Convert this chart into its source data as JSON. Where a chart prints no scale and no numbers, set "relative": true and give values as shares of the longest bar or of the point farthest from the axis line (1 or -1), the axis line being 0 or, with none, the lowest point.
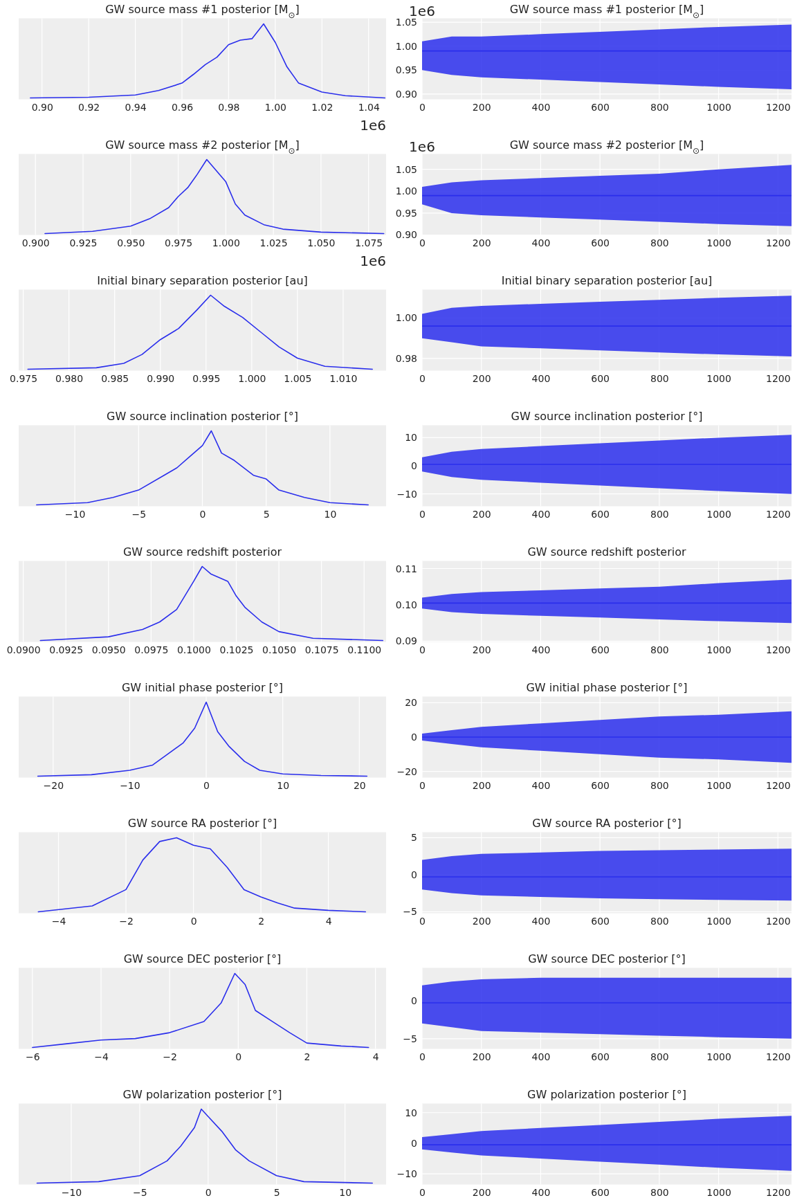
{
  "chart_data": [
    {
      "type": "line",
      "title": "GW source mass #1 posterior [M$_{⊙}$]",
      "relative": true,
      "tick_labels": "x",
      "grid": "x",
      "annotations": [
        "1e6"
      ],
      "xlim": [
        0.89,
        1.0475
      ],
      "xticks": [
        {
          "value": 0.9,
          "label": "0.90"
        },
        {
          "value": 0.92,
          "label": "0.92"
        },
        {
          "value": 0.94,
          "label": "0.94"
        },
        {
          "value": 0.96,
          "label": "0.96"
        },
        {
          "value": 0.98,
          "label": "0.98"
        },
        {
          "value": 1.0,
          "label": "1.00"
        },
        {
          "value": 1.02,
          "label": "1.02"
        },
        {
          "value": 1.04,
          "label": "1.04"
        }
      ],
      "series": [
        {
          "color": "#2a2eec",
          "x": [
            0.895,
            0.92,
            0.94,
            0.95,
            0.96,
            0.965,
            0.97,
            0.975,
            0.98,
            0.985,
            0.99,
            0.995,
            1.0,
            1.005,
            1.01,
            1.02,
            1.03,
            1.047
          ],
          "values": [
            0,
            0.01,
            0.04,
            0.1,
            0.2,
            0.32,
            0.45,
            0.55,
            0.72,
            0.78,
            0.8,
            1.0,
            0.75,
            0.42,
            0.2,
            0.08,
            0.03,
            0
          ]
        }
      ]
    },
    {
      "type": "line",
      "title": "GW source mass #1 posterior [M$_{⊙}$]",
      "grid": true,
      "annotations": [
        "1e6"
      ],
      "xlim": [
        0,
        1246
      ],
      "xticks": [
        0,
        200,
        400,
        600,
        800,
        1000,
        1200
      ],
      "ylim": [
        0.889,
        1.058
      ],
      "yticks": [
        {
          "value": 0.9,
          "label": "0.90"
        },
        {
          "value": 0.95,
          "label": "0.95"
        },
        {
          "value": 1.0,
          "label": "1.00"
        },
        {
          "value": 1.05,
          "label": "1.05"
        }
      ],
      "series": [
        {
          "color": "#2a2eec",
          "x": [
            0,
            100,
            200,
            400,
            600,
            800,
            1000,
            1246
          ],
          "values": [
            0.99,
            0.99,
            0.99,
            0.99,
            0.99,
            0.99,
            0.99,
            0.99
          ],
          "lower": [
            0.95,
            0.94,
            0.935,
            0.93,
            0.925,
            0.92,
            0.915,
            0.91
          ],
          "upper": [
            1.01,
            1.02,
            1.02,
            1.025,
            1.03,
            1.035,
            1.04,
            1.045
          ]
        }
      ]
    },
    {
      "type": "line",
      "title": "GW source mass #2 posterior [M$_{⊙}$]",
      "relative": true,
      "tick_labels": "x",
      "grid": "x",
      "annotations": [
        "1e6"
      ],
      "xlim": [
        0.8912,
        1.0842
      ],
      "xticks": [
        {
          "value": 0.9,
          "label": "0.900"
        },
        {
          "value": 0.925,
          "label": "0.925"
        },
        {
          "value": 0.95,
          "label": "0.950"
        },
        {
          "value": 0.975,
          "label": "0.975"
        },
        {
          "value": 1.0,
          "label": "1.000"
        },
        {
          "value": 1.025,
          "label": "1.025"
        },
        {
          "value": 1.05,
          "label": "1.050"
        },
        {
          "value": 1.075,
          "label": "1.075"
        }
      ],
      "series": [
        {
          "color": "#2a2eec",
          "x": [
            0.905,
            0.93,
            0.95,
            0.96,
            0.97,
            0.975,
            0.98,
            0.985,
            0.99,
            0.995,
            1.0,
            1.005,
            1.01,
            1.02,
            1.03,
            1.05,
            1.083
          ],
          "values": [
            0,
            0.03,
            0.1,
            0.2,
            0.35,
            0.5,
            0.62,
            0.8,
            1.0,
            0.85,
            0.7,
            0.4,
            0.25,
            0.12,
            0.06,
            0.02,
            0
          ]
        }
      ]
    },
    {
      "type": "line",
      "title": "GW source mass #2 posterior [M$_{⊙}$]",
      "grid": true,
      "annotations": [
        "1e6"
      ],
      "xlim": [
        0,
        1246
      ],
      "xticks": [
        0,
        200,
        400,
        600,
        800,
        1000,
        1200
      ],
      "ylim": [
        0.9,
        1.085
      ],
      "yticks": [
        {
          "value": 0.9,
          "label": "0.90"
        },
        {
          "value": 0.95,
          "label": "0.95"
        },
        {
          "value": 1.0,
          "label": "1.00"
        },
        {
          "value": 1.05,
          "label": "1.05"
        }
      ],
      "series": [
        {
          "color": "#2a2eec",
          "x": [
            0,
            100,
            200,
            400,
            600,
            800,
            1000,
            1246
          ],
          "values": [
            0.99,
            0.99,
            0.99,
            0.99,
            0.99,
            0.99,
            0.99,
            0.99
          ],
          "lower": [
            0.97,
            0.95,
            0.945,
            0.94,
            0.935,
            0.93,
            0.925,
            0.92
          ],
          "upper": [
            1.01,
            1.02,
            1.025,
            1.03,
            1.035,
            1.04,
            1.05,
            1.06
          ]
        }
      ]
    },
    {
      "type": "line",
      "title": "Initial binary separation posterior [au]",
      "relative": true,
      "tick_labels": "x",
      "grid": "x",
      "xlim": [
        0.9745,
        1.0147
      ],
      "xticks": [
        {
          "value": 0.975,
          "label": "0.975"
        },
        {
          "value": 0.98,
          "label": "0.980"
        },
        {
          "value": 0.985,
          "label": "0.985"
        },
        {
          "value": 0.99,
          "label": "0.990"
        },
        {
          "value": 0.995,
          "label": "0.995"
        },
        {
          "value": 1.0,
          "label": "1.000"
        },
        {
          "value": 1.005,
          "label": "1.005"
        },
        {
          "value": 1.01,
          "label": "1.010"
        }
      ],
      "series": [
        {
          "color": "#2a2eec",
          "x": [
            0.9755,
            0.983,
            0.986,
            0.988,
            0.99,
            0.992,
            0.994,
            0.9955,
            0.997,
            0.999,
            1.001,
            1.003,
            1.005,
            1.008,
            1.0132
          ],
          "values": [
            0,
            0.02,
            0.08,
            0.2,
            0.4,
            0.55,
            0.8,
            1.0,
            0.85,
            0.7,
            0.5,
            0.3,
            0.15,
            0.04,
            0
          ]
        }
      ]
    },
    {
      "type": "line",
      "title": "Initial binary separation posterior [au]",
      "grid": true,
      "xlim": [
        0,
        1246
      ],
      "xticks": [
        0,
        200,
        400,
        600,
        800,
        1000,
        1200
      ],
      "ylim": [
        0.974,
        1.014
      ],
      "yticks": [
        {
          "value": 0.98,
          "label": "0.98"
        },
        {
          "value": 1.0,
          "label": "1.00"
        }
      ],
      "series": [
        {
          "color": "#2a2eec",
          "x": [
            0,
            100,
            200,
            400,
            600,
            800,
            1000,
            1246
          ],
          "values": [
            0.996,
            0.996,
            0.996,
            0.996,
            0.996,
            0.996,
            0.996,
            0.996
          ],
          "lower": [
            0.99,
            0.988,
            0.986,
            0.985,
            0.984,
            0.983,
            0.982,
            0.981
          ],
          "upper": [
            1.002,
            1.005,
            1.006,
            1.007,
            1.008,
            1.009,
            1.01,
            1.011
          ]
        }
      ]
    },
    {
      "type": "line",
      "title": "GW source inclination posterior [°]",
      "relative": true,
      "tick_labels": "x",
      "grid": "x",
      "xlim": [
        -14.4,
        14.4
      ],
      "xticks": [
        {
          "value": -10,
          "label": "−10"
        },
        {
          "value": -5,
          "label": "−5"
        },
        0,
        5,
        10
      ],
      "series": [
        {
          "color": "#2a2eec",
          "x": [
            -13,
            -9,
            -7,
            -5,
            -3,
            -2,
            -1,
            0,
            0.7,
            1.5,
            2.5,
            4,
            5,
            6,
            8,
            10,
            13
          ],
          "values": [
            0,
            0.03,
            0.1,
            0.2,
            0.4,
            0.5,
            0.65,
            0.8,
            1.0,
            0.7,
            0.6,
            0.4,
            0.35,
            0.2,
            0.1,
            0.03,
            0
          ]
        }
      ]
    },
    {
      "type": "line",
      "title": "GW source inclination posterior [°]",
      "grid": true,
      "xlim": [
        0,
        1246
      ],
      "xticks": [
        0,
        200,
        400,
        600,
        800,
        1000,
        1200
      ],
      "ylim": [
        -14.4,
        14.4
      ],
      "yticks": [
        {
          "value": -10,
          "label": "−10"
        },
        0,
        10
      ],
      "series": [
        {
          "color": "#2a2eec",
          "x": [
            0,
            100,
            200,
            400,
            600,
            800,
            1000,
            1246
          ],
          "values": [
            0.5,
            0.5,
            0.5,
            0.5,
            0.5,
            0.5,
            0.5,
            0.5
          ],
          "lower": [
            -2,
            -4,
            -5,
            -6,
            -7,
            -8,
            -9,
            -10
          ],
          "upper": [
            3,
            5,
            6,
            7,
            8,
            9,
            10,
            11
          ]
        }
      ]
    },
    {
      "type": "line",
      "title": "GW source redshift posterior",
      "relative": true,
      "tick_labels": "x",
      "grid": "x",
      "xlim": [
        0.08973,
        0.11129
      ],
      "xticks": [
        {
          "value": 0.09,
          "label": "0.0900"
        },
        {
          "value": 0.0925,
          "label": "0.0925"
        },
        {
          "value": 0.095,
          "label": "0.0950"
        },
        {
          "value": 0.0975,
          "label": "0.0975"
        },
        {
          "value": 0.1,
          "label": "0.1000"
        },
        {
          "value": 0.1025,
          "label": "0.1025"
        },
        {
          "value": 0.105,
          "label": "0.1050"
        },
        {
          "value": 0.1075,
          "label": "0.1075"
        },
        {
          "value": 0.11,
          "label": "0.1100"
        }
      ],
      "series": [
        {
          "color": "#2a2eec",
          "x": [
            0.091,
            0.095,
            0.097,
            0.098,
            0.099,
            0.1,
            0.1005,
            0.101,
            0.102,
            0.1025,
            0.103,
            0.104,
            0.105,
            0.107,
            0.1111
          ],
          "values": [
            0,
            0.05,
            0.15,
            0.25,
            0.42,
            0.8,
            1.0,
            0.9,
            0.8,
            0.6,
            0.45,
            0.25,
            0.12,
            0.03,
            0
          ]
        }
      ]
    },
    {
      "type": "line",
      "title": "GW source redshift posterior",
      "grid": true,
      "xlim": [
        0,
        1246
      ],
      "xticks": [
        0,
        200,
        400,
        600,
        800,
        1000,
        1200
      ],
      "ylim": [
        0.0898,
        0.1121
      ],
      "yticks": [
        {
          "value": 0.09,
          "label": "0.09"
        },
        {
          "value": 0.1,
          "label": "0.10"
        },
        0.11
      ],
      "series": [
        {
          "color": "#2a2eec",
          "x": [
            0,
            100,
            200,
            400,
            600,
            800,
            1000,
            1246
          ],
          "values": [
            0.1005,
            0.1005,
            0.1005,
            0.1005,
            0.1005,
            0.1005,
            0.1005,
            0.1005
          ],
          "lower": [
            0.099,
            0.098,
            0.0975,
            0.097,
            0.0965,
            0.096,
            0.0955,
            0.095
          ],
          "upper": [
            0.102,
            0.103,
            0.1035,
            0.104,
            0.1045,
            0.105,
            0.106,
            0.107
          ]
        }
      ]
    },
    {
      "type": "line",
      "title": "GW initial phase posterior [°]",
      "relative": true,
      "tick_labels": "x",
      "grid": "x",
      "xlim": [
        -24.5,
        23.5
      ],
      "xticks": [
        {
          "value": -20,
          "label": "−20"
        },
        {
          "value": -10,
          "label": "−10"
        },
        0,
        10,
        20
      ],
      "series": [
        {
          "color": "#2a2eec",
          "x": [
            -22,
            -15,
            -10,
            -7,
            -5,
            -3,
            -1.5,
            0,
            1.5,
            3,
            5,
            7,
            10,
            15,
            21
          ],
          "values": [
            0,
            0.02,
            0.08,
            0.15,
            0.3,
            0.45,
            0.65,
            1.0,
            0.6,
            0.4,
            0.2,
            0.08,
            0.03,
            0.01,
            0
          ]
        }
      ]
    },
    {
      "type": "line",
      "title": "GW initial phase posterior [°]",
      "grid": true,
      "xlim": [
        0,
        1246
      ],
      "xticks": [
        0,
        200,
        400,
        600,
        800,
        1000,
        1200
      ],
      "ylim": [
        -23.6,
        23.6
      ],
      "yticks": [
        {
          "value": -20,
          "label": "−20"
        },
        0,
        20
      ],
      "series": [
        {
          "color": "#2a2eec",
          "x": [
            0,
            100,
            200,
            400,
            600,
            800,
            1000,
            1246
          ],
          "values": [
            0,
            0,
            0,
            0,
            0,
            0,
            0,
            0
          ],
          "lower": [
            -2,
            -4,
            -6,
            -8,
            -10,
            -12,
            -13,
            -15
          ],
          "upper": [
            2,
            4,
            6,
            8,
            10,
            12,
            13,
            15
          ]
        }
      ]
    },
    {
      "type": "line",
      "title": "GW source RA posterior [°]",
      "relative": true,
      "tick_labels": "x",
      "grid": "x",
      "xlim": [
        -5.18,
        5.71
      ],
      "xticks": [
        {
          "value": -4,
          "label": "−4"
        },
        {
          "value": -2,
          "label": "−2"
        },
        0,
        2,
        4
      ],
      "series": [
        {
          "color": "#2a2eec",
          "x": [
            -4.6,
            -3,
            -2,
            -1.5,
            -1,
            -0.5,
            0,
            0.5,
            1,
            1.5,
            2,
            2.5,
            3,
            4,
            5.1
          ],
          "values": [
            0,
            0.08,
            0.3,
            0.7,
            0.95,
            1.0,
            0.9,
            0.85,
            0.6,
            0.3,
            0.2,
            0.12,
            0.05,
            0.02,
            0
          ]
        }
      ]
    },
    {
      "type": "line",
      "title": "GW source RA posterior [°]",
      "grid": true,
      "xlim": [
        0,
        1246
      ],
      "xticks": [
        0,
        200,
        400,
        600,
        800,
        1000,
        1200
      ],
      "ylim": [
        -5.2,
        5.73
      ],
      "yticks": [
        {
          "value": -5,
          "label": "−5"
        },
        0,
        5
      ],
      "series": [
        {
          "color": "#2a2eec",
          "x": [
            0,
            100,
            200,
            400,
            600,
            800,
            1000,
            1246
          ],
          "values": [
            -0.3,
            -0.3,
            -0.3,
            -0.3,
            -0.3,
            -0.3,
            -0.3,
            -0.3
          ],
          "lower": [
            -2,
            -2.5,
            -2.8,
            -3,
            -3.2,
            -3.3,
            -3.4,
            -3.5
          ],
          "upper": [
            2,
            2.5,
            2.8,
            3,
            3.2,
            3.3,
            3.4,
            3.5
          ]
        }
      ]
    },
    {
      "type": "line",
      "title": "GW source DEC posterior [°]",
      "relative": true,
      "tick_labels": "x",
      "grid": "x",
      "xlim": [
        -6.4,
        4.31
      ],
      "xticks": [
        {
          "value": -6,
          "label": "−6"
        },
        {
          "value": -4,
          "label": "−4"
        },
        {
          "value": -2,
          "label": "−2"
        },
        0,
        2,
        4
      ],
      "series": [
        {
          "color": "#2a2eec",
          "x": [
            -6,
            -5,
            -4,
            -3,
            -2,
            -1,
            -0.5,
            -0.1,
            0.2,
            0.5,
            1,
            1.5,
            2,
            3,
            3.8
          ],
          "values": [
            0,
            0.05,
            0.1,
            0.12,
            0.2,
            0.35,
            0.6,
            1.0,
            0.85,
            0.5,
            0.35,
            0.2,
            0.06,
            0.02,
            0
          ]
        }
      ]
    },
    {
      "type": "line",
      "title": "GW source DEC posterior [°]",
      "grid": true,
      "xlim": [
        0,
        1246
      ],
      "xticks": [
        0,
        200,
        400,
        600,
        800,
        1000,
        1200
      ],
      "ylim": [
        -6.33,
        4.29
      ],
      "yticks": [
        {
          "value": -5,
          "label": "−5"
        },
        0
      ],
      "series": [
        {
          "color": "#2a2eec",
          "x": [
            0,
            100,
            200,
            400,
            600,
            800,
            1000,
            1246
          ],
          "values": [
            -0.3,
            -0.3,
            -0.3,
            -0.3,
            -0.3,
            -0.3,
            -0.3,
            -0.3
          ],
          "lower": [
            -3,
            -3.5,
            -4,
            -4.2,
            -4.4,
            -4.6,
            -4.8,
            -5
          ],
          "upper": [
            2,
            2.5,
            2.8,
            3,
            3,
            3,
            3,
            3
          ]
        }
      ]
    },
    {
      "type": "line",
      "title": "GW polarization posterior [°]",
      "relative": true,
      "tick_labels": "x",
      "grid": "x",
      "xlim": [
        -13.84,
        13.0
      ],
      "xticks": [
        {
          "value": -10,
          "label": "−10"
        },
        {
          "value": -5,
          "label": "−5"
        },
        0,
        5,
        10
      ],
      "series": [
        {
          "color": "#2a2eec",
          "x": [
            -12.5,
            -8,
            -5,
            -3,
            -2,
            -1,
            -0.5,
            0,
            1,
            2,
            3,
            5,
            7,
            12
          ],
          "values": [
            0,
            0.02,
            0.1,
            0.3,
            0.5,
            0.75,
            1.0,
            0.9,
            0.7,
            0.45,
            0.3,
            0.1,
            0.02,
            0
          ]
        }
      ]
    },
    {
      "type": "line",
      "title": "GW polarization posterior [°]",
      "grid": true,
      "xlim": [
        0,
        1246
      ],
      "xticks": [
        0,
        200,
        400,
        600,
        800,
        1000,
        1200
      ],
      "ylim": [
        -13.5,
        13.0
      ],
      "yticks": [
        {
          "value": -10,
          "label": "−10"
        },
        0,
        10
      ],
      "series": [
        {
          "color": "#2a2eec",
          "x": [
            0,
            100,
            200,
            400,
            600,
            800,
            1000,
            1246
          ],
          "values": [
            -0.5,
            -0.5,
            -0.5,
            -0.5,
            -0.5,
            -0.5,
            -0.5,
            -0.5
          ],
          "lower": [
            -2,
            -3,
            -4,
            -5,
            -6,
            -7,
            -8,
            -9
          ],
          "upper": [
            2,
            3,
            4,
            5,
            6,
            7,
            8,
            9
          ]
        }
      ]
    }
  ]
}
